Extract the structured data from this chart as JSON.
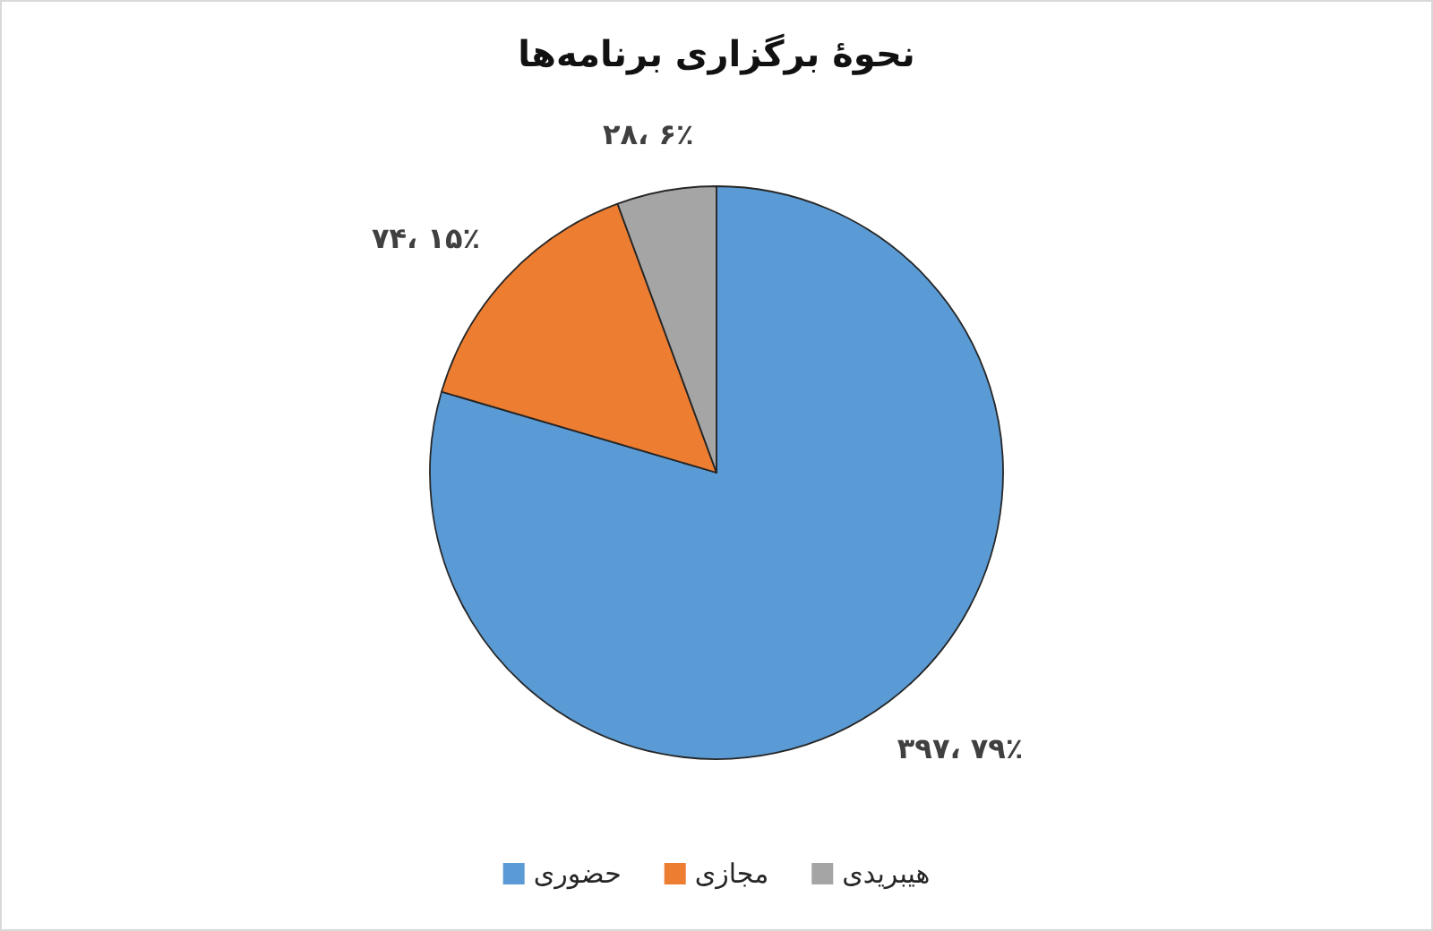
{
  "chart_data": {
    "type": "pie",
    "title": "نحوهٔ برگزاری برنامه‌ها",
    "categories": [
      "حضوری",
      "مجازی",
      "هیبریدی"
    ],
    "values": [
      397,
      74,
      28
    ],
    "colors": [
      "#5b9bd5",
      "#ed7d31",
      "#a5a5a5"
    ],
    "value_labels": [
      "۳۹۷، ۷۹٪",
      "۷۴، ۱۵٪",
      "۲۸، ۶٪"
    ],
    "legend": "bottom"
  }
}
